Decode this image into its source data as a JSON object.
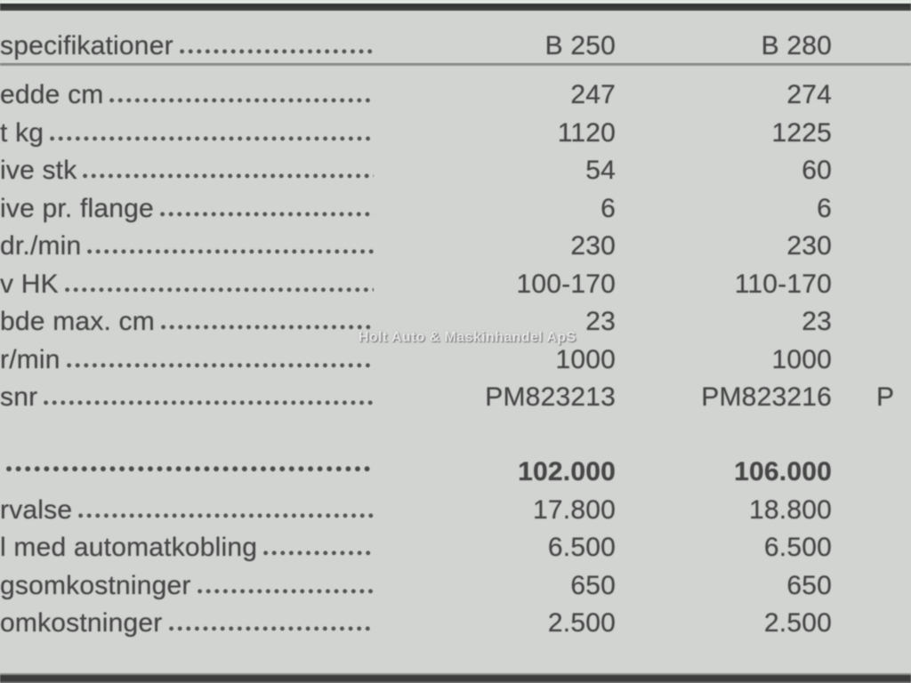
{
  "colors": {
    "background": "#d2d4d2",
    "text": "#474747",
    "top_bar": "#2f2f2f",
    "bottom_bar": "#3c3c3c",
    "watermark_text": "#ffffff"
  },
  "watermark": "Holt Auto & Maskinhandel ApS",
  "table": {
    "header": {
      "label": "specifikationer",
      "col1": "B 250",
      "col2": "B 280"
    },
    "spec_rows": [
      {
        "label": "edde cm",
        "v1": "247",
        "v2": "274"
      },
      {
        "label": "t kg",
        "v1": "1120",
        "v2": "1225"
      },
      {
        "label": "ive stk",
        "v1": "54",
        "v2": "60"
      },
      {
        "label": "ive pr. flange",
        "v1": "6",
        "v2": "6"
      },
      {
        "label": "dr./min",
        "v1": "230",
        "v2": "230"
      },
      {
        "label": "v HK",
        "v1": "100-170",
        "v2": "110-170"
      },
      {
        "label": "bde max. cm",
        "v1": "23",
        "v2": "23"
      },
      {
        "label": "r/min",
        "v1": "1000",
        "v2": "1000"
      },
      {
        "label": "snr",
        "v1": "PM823213",
        "v2": "PM823216",
        "v3": "P"
      }
    ],
    "price_rows": [
      {
        "label": "",
        "v1": "102.000",
        "v2": "106.000"
      },
      {
        "label": "rvalse",
        "v1": "17.800",
        "v2": "18.800"
      },
      {
        "label": "l med automatkobling",
        "v1": "6.500",
        "v2": "6.500"
      },
      {
        "label": "gsomkostninger",
        "v1": "650",
        "v2": "650"
      },
      {
        "label": "omkostninger",
        "v1": "2.500",
        "v2": "2.500"
      }
    ]
  }
}
